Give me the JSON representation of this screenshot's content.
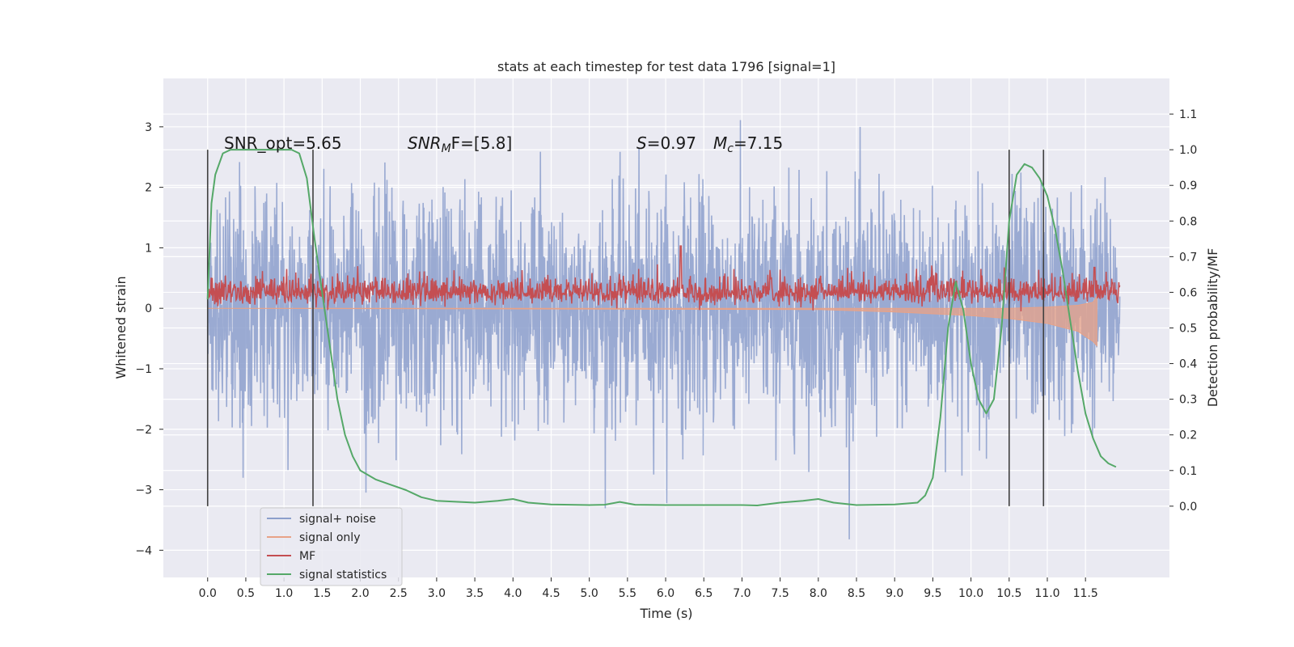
{
  "chart_data": {
    "type": "line",
    "title": "stats at each timestep for test data 1796 [signal=1]",
    "xlabel": "Time (s)",
    "ylabel": "Whitened strain",
    "ylabel_right": "Detection probability/MF",
    "xlim": [
      -0.58,
      12.6
    ],
    "ylim": [
      -4.45,
      3.8
    ],
    "ylim_right": [
      -0.2,
      1.2
    ],
    "grid": true,
    "x_ticks": [
      "0.0",
      "0.5",
      "1.0",
      "1.5",
      "2.0",
      "2.5",
      "3.0",
      "3.5",
      "4.0",
      "4.5",
      "5.0",
      "5.5",
      "6.0",
      "6.5",
      "7.0",
      "7.5",
      "8.0",
      "8.5",
      "9.0",
      "9.5",
      "10.0",
      "10.5",
      "11.0",
      "11.5"
    ],
    "y_ticks": [
      "3",
      "2",
      "1",
      "0",
      "−1",
      "−2",
      "−3",
      "−4"
    ],
    "y_ticks_right": [
      "1.1",
      "1.0",
      "0.9",
      "0.8",
      "0.7",
      "0.6",
      "0.5",
      "0.4",
      "0.3",
      "0.2",
      "0.1",
      "0.0"
    ],
    "annotations": {
      "snr_opt": "SNR_opt=5.65",
      "snr_mf_base": "SNR",
      "snr_mf_sub": "M",
      "snr_mf_rest": "F=[5.8]",
      "s_sym": "S",
      "s_val": "=0.97",
      "mc_sym": "M",
      "mc_sub": "c",
      "mc_val": "=7.15"
    },
    "legend_placement": "lower-left",
    "series": [
      {
        "name": "signal+ noise",
        "color": "#8c9fcc",
        "axis": "left",
        "x_range": [
          0.0,
          11.95
        ],
        "amplitude_range": [
          -4.1,
          3.4
        ]
      },
      {
        "name": "signal only",
        "color": "#e8a287",
        "axis": "left",
        "x": [
          0.0,
          8.0,
          9.0,
          10.0,
          10.5,
          11.0,
          11.4,
          11.6,
          11.65
        ],
        "y_upper": [
          0.0,
          0.0,
          0.0,
          0.0,
          0.0,
          0.02,
          0.05,
          0.1,
          0.2
        ],
        "y_lower": [
          0.0,
          -0.02,
          -0.06,
          -0.12,
          -0.17,
          -0.25,
          -0.38,
          -0.55,
          -0.62
        ]
      },
      {
        "name": "MF",
        "color": "#c44e52",
        "axis": "right",
        "x_range": [
          0.0,
          11.95
        ],
        "baseline": 0.6,
        "peak": 0.73
      },
      {
        "name": "signal statistics",
        "color": "#55a868",
        "axis": "right",
        "x": [
          0.0,
          0.05,
          0.1,
          0.2,
          0.3,
          0.5,
          0.8,
          1.0,
          1.1,
          1.2,
          1.3,
          1.4,
          1.5,
          1.6,
          1.7,
          1.8,
          1.9,
          2.0,
          2.2,
          2.4,
          2.6,
          2.8,
          3.0,
          3.5,
          3.8,
          4.0,
          4.2,
          4.5,
          5.0,
          5.2,
          5.4,
          5.6,
          6.0,
          6.5,
          7.0,
          7.2,
          7.5,
          7.8,
          8.0,
          8.2,
          8.5,
          9.0,
          9.3,
          9.4,
          9.5,
          9.6,
          9.7,
          9.8,
          9.9,
          10.0,
          10.1,
          10.2,
          10.3,
          10.4,
          10.5,
          10.6,
          10.7,
          10.8,
          10.9,
          11.0,
          11.1,
          11.2,
          11.3,
          11.4,
          11.5,
          11.6,
          11.7,
          11.8,
          11.9
        ],
        "y": [
          0.58,
          0.85,
          0.93,
          0.99,
          1.0,
          1.0,
          1.0,
          1.0,
          1.0,
          0.99,
          0.92,
          0.75,
          0.6,
          0.45,
          0.3,
          0.2,
          0.14,
          0.1,
          0.075,
          0.06,
          0.045,
          0.025,
          0.015,
          0.01,
          0.015,
          0.02,
          0.01,
          0.005,
          0.003,
          0.004,
          0.012,
          0.004,
          0.003,
          0.003,
          0.003,
          0.002,
          0.01,
          0.015,
          0.02,
          0.01,
          0.003,
          0.005,
          0.01,
          0.03,
          0.08,
          0.25,
          0.5,
          0.63,
          0.55,
          0.4,
          0.3,
          0.26,
          0.3,
          0.5,
          0.8,
          0.93,
          0.96,
          0.95,
          0.92,
          0.87,
          0.78,
          0.66,
          0.52,
          0.38,
          0.26,
          0.19,
          0.14,
          0.12,
          0.11
        ]
      },
      {
        "name": "",
        "color": "#404040",
        "type": "vlines",
        "x": [
          0.0,
          1.38,
          10.5,
          10.95
        ]
      }
    ]
  },
  "legend": {
    "items": [
      {
        "label": "signal+ noise",
        "color": "#8c9fcc"
      },
      {
        "label": "signal only",
        "color": "#e8a287"
      },
      {
        "label": "MF",
        "color": "#c44e52"
      },
      {
        "label": "signal statistics",
        "color": "#55a868"
      }
    ]
  },
  "colors": {
    "axes_bg": "#eaeaf2",
    "grid": "#ffffff",
    "noise": "#8c9fcc",
    "signal": "#e8a287",
    "mf": "#c44e52",
    "stats": "#55a868",
    "vline": "#404040"
  }
}
